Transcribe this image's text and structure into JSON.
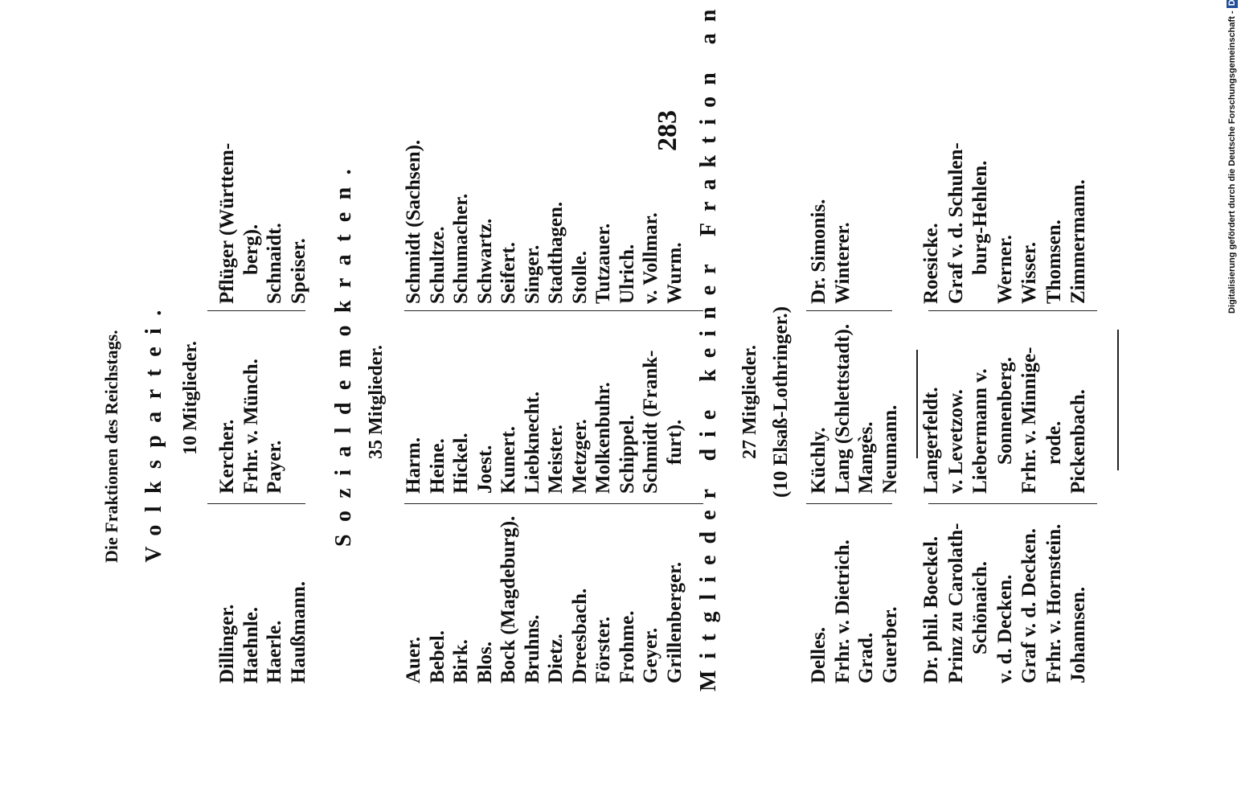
{
  "header": {
    "running_title": "Die Fraktionen des Reichstags.",
    "page_number": "283"
  },
  "sections": [
    {
      "title": "Volkspartei.",
      "count": "10 Mitglieder.",
      "columns": [
        [
          "Dillinger.",
          "Haehnle.",
          "Haerle.",
          "Haußmann."
        ],
        [
          "Kercher.",
          "Frhr. v. Münch.",
          "Payer."
        ],
        [
          "Pflüger (Württem-",
          "berg).",
          "Schnaidt.",
          "Speiser."
        ]
      ]
    },
    {
      "title": "Sozialdemokraten.",
      "count": "35 Mitglieder.",
      "columns": [
        [
          "Auer.",
          "Bebel.",
          "Birk.",
          "Blos.",
          "Bock (Magdeburg).",
          "Bruhns.",
          "Dietz.",
          "Dreesbach.",
          "Förster.",
          "Frohme.",
          "Geyer.",
          "Grillenberger."
        ],
        [
          "Harm.",
          "Heine.",
          "Hickel.",
          "Joest.",
          "Kunert.",
          "Liebknecht.",
          "Meister.",
          "Metzger.",
          "Molkenbuhr.",
          "Schippel.",
          "Schmidt (Frank-",
          "furt)."
        ],
        [
          "Schmidt (Sachsen).",
          "Schultze.",
          "Schumacher.",
          "Schwartz.",
          "Seifert.",
          "Singer.",
          "Stadthagen.",
          "Stolle.",
          "Tutzauer.",
          "Ulrich.",
          "v. Vollmar.",
          "Wurm."
        ]
      ]
    },
    {
      "title": "Mitglieder die keiner Fraktion angehören.",
      "count": "27 Mitglieder.",
      "groups": [
        {
          "note": "(10 Elsaß-Lothringer.)",
          "columns": [
            [
              "Delles.",
              "Frhr. v. Dietrich.",
              "Grad.",
              "Guerber."
            ],
            [
              "Küchly.",
              "Lang (Schlettstadt).",
              "Mangès.",
              "Neumann."
            ],
            [
              "Dr. Simonis.",
              "Winterer."
            ]
          ]
        },
        {
          "columns": [
            [
              "Dr. phil. Boeckel.",
              "Prinz zu Carolath-",
              "Schönaich.",
              "v. d. Decken.",
              "Graf v. d. Decken.",
              "Frhr. v. Hornstein.",
              "Johannsen."
            ],
            [
              "Langerfeldt.",
              "v. Levetzow.",
              "Liebermann v.",
              "Sonnenberg.",
              "Frhr. v. Minnige-",
              "rode.",
              "Pickenbach."
            ],
            [
              "Roesicke.",
              "Graf v. d. Schulen-",
              "burg-Hehlen.",
              "Werner.",
              "Wisser.",
              "Thomsen.",
              "Zimmermann."
            ]
          ]
        }
      ]
    }
  ],
  "attribution": {
    "text": "Digitalisierung gefördert durch die Deutsche Forschungsgemeinschaft -",
    "logo": "DFG"
  }
}
